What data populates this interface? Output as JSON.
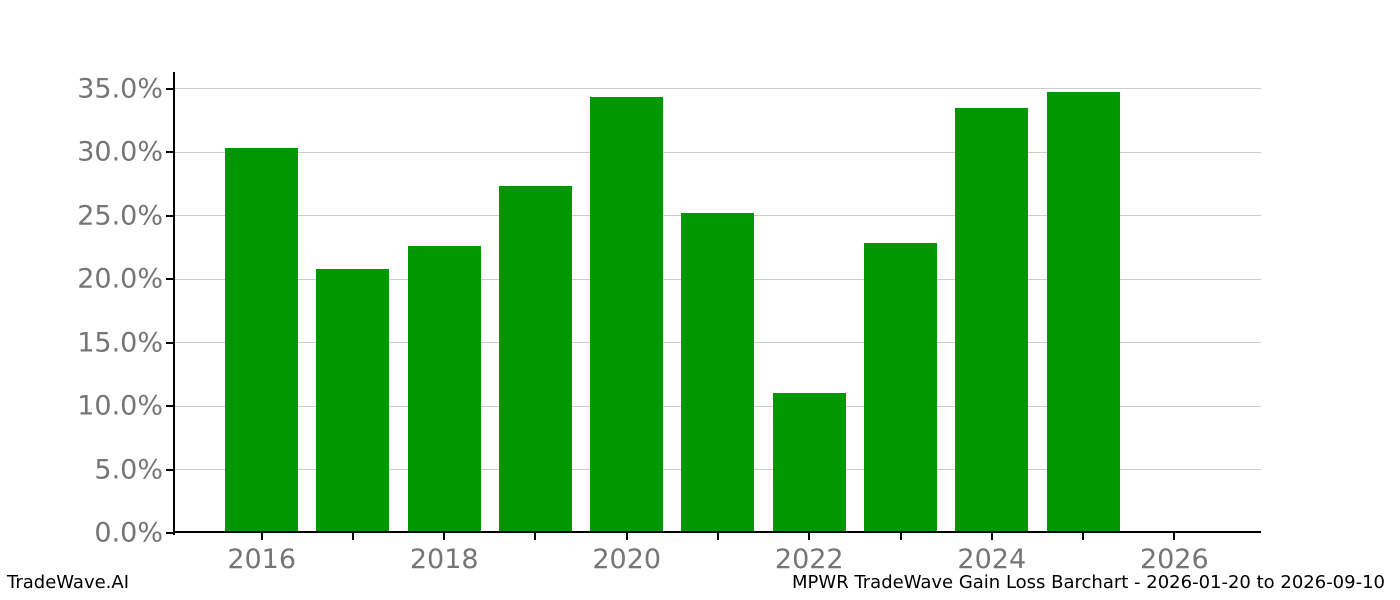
{
  "chart_data": {
    "type": "bar",
    "title": "",
    "xlabel": "",
    "ylabel": "",
    "categories": [
      2016,
      2017,
      2018,
      2019,
      2020,
      2021,
      2022,
      2023,
      2024,
      2025
    ],
    "values": [
      30.3,
      20.8,
      22.6,
      27.3,
      34.3,
      25.2,
      11.0,
      22.8,
      33.5,
      34.7
    ],
    "value_unit": "%",
    "y_axis": {
      "tick_values": [
        0,
        5,
        10,
        15,
        20,
        25,
        30,
        35
      ],
      "tick_labels": [
        "0.0%",
        "5.0%",
        "10.0%",
        "15.0%",
        "20.0%",
        "25.0%",
        "30.0%",
        "35.0%"
      ],
      "range": [
        0,
        36.3
      ]
    },
    "x_axis": {
      "tick_years": [
        2016,
        2017,
        2018,
        2019,
        2020,
        2021,
        2022,
        2023,
        2024,
        2025,
        2026
      ],
      "labeled_ticks": [
        "2016",
        "2018",
        "2020",
        "2022",
        "2024",
        "2026"
      ],
      "range": [
        2015.05,
        2026.95
      ]
    },
    "grid": "horizontal",
    "legend": "none",
    "colors": {
      "bar": "#009700",
      "grid": "#cccccc",
      "tick_label": "#757575",
      "axis": "#000000",
      "background": "#ffffff"
    }
  },
  "footer": {
    "left": "TradeWave.AI",
    "right": "MPWR TradeWave Gain Loss Barchart - 2026-01-20 to 2026-09-10"
  }
}
